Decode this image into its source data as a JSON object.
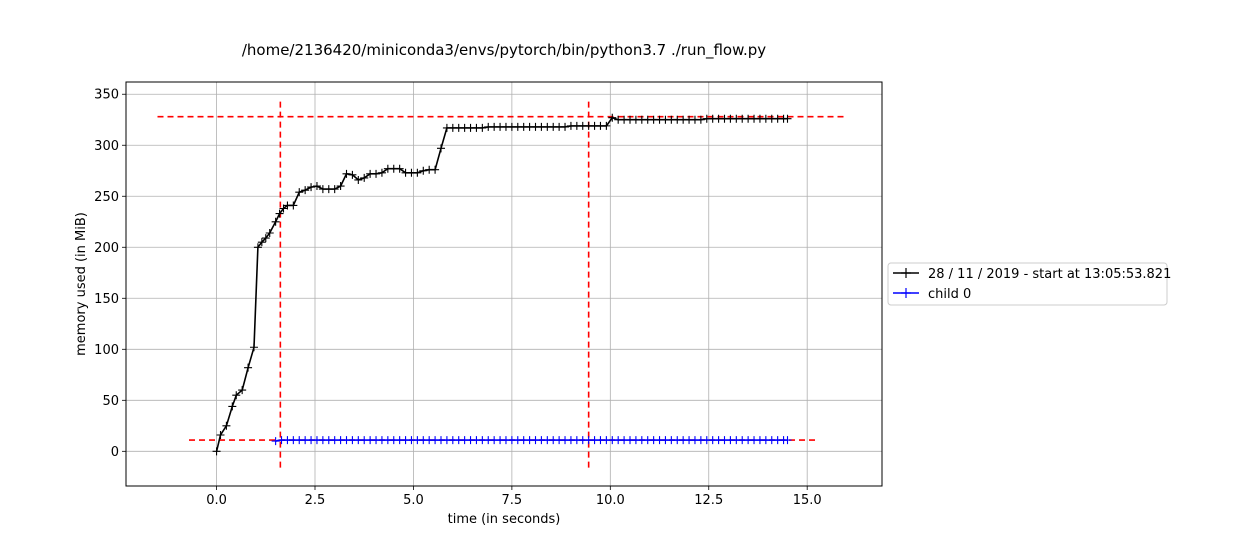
{
  "chart_data": {
    "type": "line",
    "title": "/home/2136420/miniconda3/envs/pytorch/bin/python3.7 ./run_flow.py",
    "xlabel": "time (in seconds)",
    "ylabel": "memory used (in MiB)",
    "xlim": [
      -2.3,
      16.9
    ],
    "ylim": [
      -34,
      362
    ],
    "xticks": [
      0.0,
      2.5,
      5.0,
      7.5,
      10.0,
      12.5,
      15.0
    ],
    "xtick_labels": [
      "0.0",
      "2.5",
      "5.0",
      "7.5",
      "10.0",
      "12.5",
      "15.0"
    ],
    "yticks": [
      0,
      50,
      100,
      150,
      200,
      250,
      300,
      350
    ],
    "ytick_labels": [
      "0",
      "50",
      "100",
      "150",
      "200",
      "250",
      "300",
      "350"
    ],
    "grid": true,
    "legend_position": "right, outside plot",
    "series": [
      {
        "name": "28 / 11 / 2019 - start at 13:05:53.821",
        "color": "#000000",
        "marker": "+",
        "x": [
          0.0,
          0.1,
          0.25,
          0.4,
          0.5,
          0.65,
          0.8,
          0.95,
          1.05,
          1.15,
          1.25,
          1.35,
          1.5,
          1.6,
          1.7,
          1.8,
          1.95,
          2.1,
          2.25,
          2.4,
          2.55,
          2.7,
          2.85,
          3.0,
          3.15,
          3.3,
          3.45,
          3.6,
          3.75,
          3.9,
          4.05,
          4.2,
          4.35,
          4.5,
          4.65,
          4.8,
          4.95,
          5.1,
          5.25,
          5.4,
          5.55,
          5.7,
          5.85,
          6.0,
          6.15,
          6.3,
          6.45,
          6.6,
          6.75,
          6.9,
          7.05,
          7.2,
          7.35,
          7.5,
          7.65,
          7.8,
          7.95,
          8.1,
          8.25,
          8.4,
          8.55,
          8.7,
          8.85,
          9.0,
          9.15,
          9.3,
          9.45,
          9.6,
          9.75,
          9.9,
          10.05,
          10.2,
          10.35,
          10.5,
          10.65,
          10.8,
          10.95,
          11.1,
          11.25,
          11.4,
          11.55,
          11.7,
          11.85,
          12.0,
          12.15,
          12.3,
          12.45,
          12.6,
          12.75,
          12.9,
          13.05,
          13.2,
          13.35,
          13.5,
          13.65,
          13.8,
          13.95,
          14.1,
          14.25,
          14.4,
          14.5
        ],
        "y": [
          0,
          16,
          25,
          44,
          55,
          60,
          82,
          102,
          200,
          205,
          209,
          214,
          225,
          233,
          238,
          241,
          241,
          254,
          256,
          259,
          260,
          257,
          257,
          257,
          260,
          272,
          271,
          266,
          268,
          272,
          272,
          273,
          277,
          277,
          277,
          273,
          273,
          273,
          275,
          276,
          276,
          297,
          317,
          317,
          317,
          317,
          317,
          317,
          317,
          318,
          318,
          318,
          318,
          318,
          318,
          318,
          318,
          318,
          318,
          318,
          318,
          318,
          318,
          319,
          319,
          319,
          319,
          319,
          319,
          319,
          327,
          325,
          325,
          325,
          325,
          325,
          325,
          325,
          325,
          325,
          325,
          325,
          325,
          325,
          325,
          325,
          326,
          326,
          326,
          326,
          326,
          326,
          326,
          326,
          326,
          326,
          326,
          326,
          326,
          326,
          326
        ]
      },
      {
        "name": "child 0",
        "color": "#0000ff",
        "marker": "+",
        "x": [
          1.5,
          1.65,
          1.8,
          1.95,
          2.1,
          2.25,
          2.4,
          2.55,
          2.7,
          2.85,
          3.0,
          3.15,
          3.3,
          3.45,
          3.6,
          3.75,
          3.9,
          4.05,
          4.2,
          4.35,
          4.5,
          4.65,
          4.8,
          4.95,
          5.1,
          5.25,
          5.4,
          5.55,
          5.7,
          5.85,
          6.0,
          6.15,
          6.3,
          6.45,
          6.6,
          6.75,
          6.9,
          7.05,
          7.2,
          7.35,
          7.5,
          7.65,
          7.8,
          7.95,
          8.1,
          8.25,
          8.4,
          8.55,
          8.7,
          8.85,
          9.0,
          9.15,
          9.3,
          9.45,
          9.6,
          9.75,
          9.9,
          10.05,
          10.2,
          10.35,
          10.5,
          10.65,
          10.8,
          10.95,
          11.1,
          11.25,
          11.4,
          11.55,
          11.7,
          11.85,
          12.0,
          12.15,
          12.3,
          12.45,
          12.6,
          12.75,
          12.9,
          13.05,
          13.2,
          13.35,
          13.5,
          13.65,
          13.8,
          13.95,
          14.1,
          14.25,
          14.4,
          14.5
        ],
        "y": [
          10,
          11,
          11,
          11,
          11,
          11,
          11,
          11,
          11,
          11,
          11,
          11,
          11,
          11,
          11,
          11,
          11,
          11,
          11,
          11,
          11,
          11,
          11,
          11,
          11,
          11,
          11,
          11,
          11,
          11,
          11,
          11,
          11,
          11,
          11,
          11,
          11,
          11,
          11,
          11,
          11,
          11,
          11,
          11,
          11,
          11,
          11,
          11,
          11,
          11,
          11,
          11,
          11,
          11,
          11,
          11,
          11,
          11,
          11,
          11,
          11,
          11,
          11,
          11,
          11,
          11,
          11,
          11,
          11,
          11,
          11,
          11,
          11,
          11,
          11,
          11,
          11,
          11,
          11,
          11,
          11,
          11,
          11,
          11,
          11,
          11,
          11,
          11
        ]
      }
    ],
    "reference_lines": [
      {
        "orientation": "horizontal",
        "y": 328,
        "x_from": -1.5,
        "x_to": 16.0,
        "color": "#ff0000",
        "style": "dashed"
      },
      {
        "orientation": "horizontal",
        "y": 11,
        "x_from": -0.7,
        "x_to": 15.2,
        "color": "#ff0000",
        "style": "dashed"
      },
      {
        "orientation": "vertical",
        "x": 1.62,
        "y_from": -16,
        "y_to": 345,
        "color": "#ff0000",
        "style": "dashed"
      },
      {
        "orientation": "vertical",
        "x": 9.45,
        "y_from": -16,
        "y_to": 345,
        "color": "#ff0000",
        "style": "dashed"
      }
    ]
  }
}
